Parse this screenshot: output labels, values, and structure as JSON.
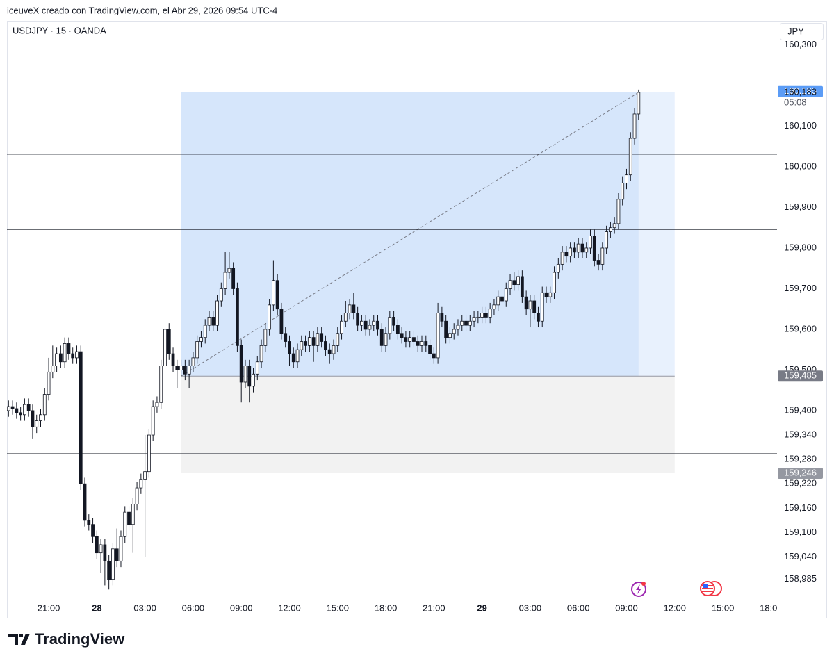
{
  "header": {
    "attribution": "iceuveX creado con TradingView.com, el Abr 29, 2026 09:54 UTC-4"
  },
  "footer": {
    "brand": "TradingView"
  },
  "chart_data": {
    "type": "candlestick",
    "title": "USDJPY · 15 · OANDA",
    "currency": "JPY",
    "x": [
      0,
      1,
      2,
      3,
      4,
      5,
      6,
      7,
      8,
      9,
      10,
      11,
      12,
      13,
      14,
      15,
      16,
      17,
      18,
      19,
      20,
      21,
      22,
      23,
      24,
      25,
      26,
      27,
      28,
      29,
      30,
      31,
      32,
      33,
      34,
      35,
      36,
      37,
      38,
      39,
      40,
      41,
      42,
      43,
      44,
      45,
      46,
      47,
      48,
      49,
      50,
      51,
      52,
      53,
      54,
      55,
      56,
      57,
      58,
      59,
      60,
      61,
      62,
      63,
      64,
      65,
      66,
      67,
      68,
      69,
      70,
      71,
      72,
      73,
      74,
      75,
      76,
      77,
      78,
      79,
      80,
      81,
      82,
      83,
      84,
      85,
      86,
      87,
      88,
      89,
      90,
      91,
      92,
      93,
      94,
      95,
      96,
      97,
      98,
      99,
      100,
      101,
      102,
      103,
      104,
      105,
      106,
      107,
      108,
      109,
      110,
      111,
      112,
      113,
      114,
      115,
      116,
      117,
      118,
      119,
      120,
      121,
      122,
      123,
      124,
      125,
      126,
      127,
      128,
      129,
      130,
      131,
      132,
      133,
      134,
      135,
      136,
      137,
      138,
      139,
      140,
      141,
      142,
      143,
      144,
      145,
      146,
      147,
      148,
      149,
      150,
      151,
      152,
      153,
      154,
      155,
      156,
      157
    ],
    "open": [
      159.4,
      159.41,
      159.405,
      159.395,
      159.39,
      159.415,
      159.4,
      159.36,
      159.375,
      159.39,
      159.44,
      159.495,
      159.51,
      159.54,
      159.52,
      159.565,
      159.54,
      159.53,
      159.545,
      159.22,
      159.13,
      159.12,
      159.09,
      159.05,
      159.07,
      159.03,
      158.985,
      159.06,
      159.03,
      159.09,
      159.15,
      159.12,
      159.17,
      159.21,
      159.23,
      159.25,
      159.34,
      159.41,
      159.42,
      159.51,
      159.6,
      159.54,
      159.51,
      159.5,
      159.51,
      159.49,
      159.51,
      159.53,
      159.57,
      159.58,
      159.61,
      159.63,
      159.61,
      159.67,
      159.7,
      159.74,
      159.75,
      159.7,
      159.56,
      159.47,
      159.51,
      159.46,
      159.49,
      159.52,
      159.56,
      159.6,
      159.66,
      159.72,
      159.65,
      159.59,
      159.57,
      159.54,
      159.52,
      159.55,
      159.57,
      159.56,
      159.58,
      159.56,
      159.59,
      159.57,
      159.55,
      159.54,
      159.56,
      159.59,
      159.62,
      159.64,
      159.66,
      159.64,
      159.61,
      159.62,
      159.6,
      159.61,
      159.62,
      159.6,
      159.56,
      159.59,
      159.63,
      159.61,
      159.59,
      159.58,
      159.57,
      159.58,
      159.57,
      159.56,
      159.57,
      159.56,
      159.54,
      159.53,
      159.64,
      159.62,
      159.58,
      159.59,
      159.6,
      159.61,
      159.62,
      159.61,
      159.62,
      159.63,
      159.63,
      159.64,
      159.63,
      159.65,
      159.66,
      159.68,
      159.67,
      159.7,
      159.72,
      159.71,
      159.73,
      159.68,
      159.65,
      159.67,
      159.64,
      159.62,
      159.69,
      159.68,
      159.69,
      159.74,
      159.76,
      159.79,
      159.78,
      159.8,
      159.79,
      159.81,
      159.79,
      159.8,
      159.83,
      159.77,
      159.76,
      159.8,
      159.84,
      159.85,
      159.86,
      159.92,
      159.96,
      159.98,
      160.07,
      160.13
    ],
    "high": [
      159.425,
      159.425,
      159.42,
      159.41,
      159.43,
      159.43,
      159.415,
      159.39,
      159.405,
      159.455,
      159.53,
      159.56,
      159.555,
      159.56,
      159.58,
      159.58,
      159.555,
      159.56,
      159.56,
      159.235,
      159.145,
      159.135,
      159.105,
      159.085,
      159.085,
      159.045,
      159.075,
      159.11,
      159.105,
      159.165,
      159.165,
      159.185,
      159.225,
      159.245,
      159.34,
      159.355,
      159.425,
      159.435,
      159.525,
      159.69,
      159.615,
      159.555,
      159.525,
      159.525,
      159.525,
      159.525,
      159.545,
      159.585,
      159.595,
      159.625,
      159.645,
      159.645,
      159.685,
      159.715,
      159.79,
      159.79,
      159.765,
      159.715,
      159.575,
      159.525,
      159.525,
      159.505,
      159.535,
      159.575,
      159.615,
      159.675,
      159.77,
      159.735,
      159.665,
      159.605,
      159.585,
      159.555,
      159.565,
      159.585,
      159.585,
      159.595,
      159.595,
      159.605,
      159.605,
      159.585,
      159.565,
      159.575,
      159.605,
      159.635,
      159.67,
      159.675,
      159.69,
      159.655,
      159.635,
      159.635,
      159.625,
      159.635,
      159.635,
      159.615,
      159.605,
      159.645,
      159.645,
      159.625,
      159.605,
      159.595,
      159.595,
      159.595,
      159.585,
      159.585,
      159.585,
      159.575,
      159.555,
      159.665,
      159.655,
      159.635,
      159.605,
      159.615,
      159.625,
      159.635,
      159.635,
      159.635,
      159.645,
      159.645,
      159.655,
      159.655,
      159.665,
      159.675,
      159.695,
      159.695,
      159.715,
      159.735,
      159.74,
      159.745,
      159.745,
      159.695,
      159.685,
      159.685,
      159.655,
      159.705,
      159.705,
      159.705,
      159.755,
      159.775,
      159.805,
      159.805,
      159.815,
      159.815,
      159.825,
      159.825,
      159.815,
      159.845,
      159.845,
      159.785,
      159.815,
      159.855,
      159.865,
      159.875,
      159.935,
      159.975,
      159.995,
      160.085,
      160.145,
      160.19
    ],
    "low": [
      159.385,
      159.39,
      159.38,
      159.375,
      159.375,
      159.385,
      159.33,
      159.345,
      159.36,
      159.375,
      159.425,
      159.48,
      159.495,
      159.505,
      159.505,
      159.525,
      159.515,
      159.515,
      159.205,
      159.115,
      159.105,
      159.075,
      159.035,
      159.0,
      158.97,
      158.96,
      158.97,
      159.015,
      159.015,
      159.075,
      159.105,
      159.05,
      159.155,
      159.195,
      159.04,
      159.235,
      159.325,
      159.395,
      159.405,
      159.495,
      159.525,
      159.495,
      159.455,
      159.485,
      159.475,
      159.455,
      159.495,
      159.515,
      159.555,
      159.565,
      159.595,
      159.595,
      159.595,
      159.655,
      159.685,
      159.725,
      159.685,
      159.545,
      159.42,
      159.455,
      159.42,
      159.445,
      159.475,
      159.505,
      159.545,
      159.585,
      159.645,
      159.635,
      159.575,
      159.555,
      159.51,
      159.505,
      159.505,
      159.535,
      159.545,
      159.545,
      159.52,
      159.545,
      159.555,
      159.535,
      159.515,
      159.525,
      159.545,
      159.575,
      159.605,
      159.625,
      159.625,
      159.595,
      159.595,
      159.585,
      159.585,
      159.595,
      159.585,
      159.545,
      159.545,
      159.575,
      159.595,
      159.575,
      159.565,
      159.555,
      159.555,
      159.555,
      159.545,
      159.545,
      159.545,
      159.525,
      159.515,
      159.515,
      159.605,
      159.565,
      159.565,
      159.575,
      159.585,
      159.595,
      159.595,
      159.595,
      159.605,
      159.615,
      159.615,
      159.615,
      159.615,
      159.635,
      159.645,
      159.655,
      159.655,
      159.685,
      159.695,
      159.695,
      159.665,
      159.635,
      159.605,
      159.625,
      159.605,
      159.605,
      159.665,
      159.665,
      159.675,
      159.725,
      159.745,
      159.765,
      159.765,
      159.775,
      159.775,
      159.775,
      159.775,
      159.785,
      159.755,
      159.745,
      159.745,
      159.785,
      159.825,
      159.835,
      159.845,
      159.905,
      159.945,
      159.965,
      160.055,
      160.115
    ],
    "close": [
      159.41,
      159.405,
      159.395,
      159.39,
      159.415,
      159.4,
      159.36,
      159.375,
      159.39,
      159.44,
      159.495,
      159.51,
      159.54,
      159.52,
      159.565,
      159.54,
      159.53,
      159.545,
      159.22,
      159.13,
      159.12,
      159.09,
      159.05,
      159.07,
      159.03,
      158.985,
      159.06,
      159.03,
      159.09,
      159.15,
      159.12,
      159.17,
      159.21,
      159.23,
      159.25,
      159.34,
      159.41,
      159.42,
      159.51,
      159.6,
      159.54,
      159.51,
      159.5,
      159.51,
      159.49,
      159.51,
      159.53,
      159.57,
      159.58,
      159.61,
      159.63,
      159.61,
      159.67,
      159.7,
      159.74,
      159.75,
      159.7,
      159.56,
      159.47,
      159.51,
      159.46,
      159.49,
      159.52,
      159.56,
      159.6,
      159.66,
      159.72,
      159.65,
      159.59,
      159.57,
      159.54,
      159.52,
      159.55,
      159.57,
      159.56,
      159.58,
      159.56,
      159.59,
      159.57,
      159.55,
      159.54,
      159.56,
      159.59,
      159.62,
      159.64,
      159.66,
      159.64,
      159.61,
      159.62,
      159.6,
      159.61,
      159.62,
      159.6,
      159.56,
      159.59,
      159.63,
      159.61,
      159.59,
      159.58,
      159.57,
      159.58,
      159.57,
      159.56,
      159.57,
      159.56,
      159.54,
      159.53,
      159.64,
      159.62,
      159.58,
      159.59,
      159.6,
      159.61,
      159.62,
      159.61,
      159.62,
      159.63,
      159.63,
      159.64,
      159.63,
      159.65,
      159.66,
      159.68,
      159.67,
      159.7,
      159.72,
      159.71,
      159.73,
      159.68,
      159.65,
      159.67,
      159.64,
      159.62,
      159.69,
      159.68,
      159.69,
      159.74,
      159.76,
      159.79,
      159.78,
      159.8,
      159.79,
      159.81,
      159.79,
      159.8,
      159.83,
      159.77,
      159.76,
      159.8,
      159.84,
      159.85,
      159.86,
      159.92,
      159.96,
      159.98,
      160.07,
      160.13,
      160.183
    ],
    "up_color": "#ffffff",
    "down_color": "#131722",
    "border_color": "#131722",
    "xlim": [
      -0.4,
      191.5
    ],
    "xticks": [
      {
        "value": 10,
        "label": "21:00"
      },
      {
        "value": 22,
        "label": "28",
        "bold": true
      },
      {
        "value": 34,
        "label": "03:00"
      },
      {
        "value": 46,
        "label": "06:00"
      },
      {
        "value": 58,
        "label": "09:00"
      },
      {
        "value": 70,
        "label": "12:00"
      },
      {
        "value": 82,
        "label": "15:00"
      },
      {
        "value": 94,
        "label": "18:00"
      },
      {
        "value": 106,
        "label": "21:00"
      },
      {
        "value": 118,
        "label": "29",
        "bold": true
      },
      {
        "value": 130,
        "label": "03:00"
      },
      {
        "value": 142,
        "label": "06:00"
      },
      {
        "value": 154,
        "label": "09:00"
      },
      {
        "value": 166,
        "label": "12:00"
      },
      {
        "value": 178,
        "label": "15:00"
      },
      {
        "value": 190,
        "label": "18:00"
      }
    ],
    "ylim": [
      158.94,
      160.359
    ],
    "yticks": [
      {
        "value": 160.3,
        "label": "160,300"
      },
      {
        "value": 160.1,
        "label": "160,100"
      },
      {
        "value": 160.0,
        "label": "160,000"
      },
      {
        "value": 159.9,
        "label": "159,900"
      },
      {
        "value": 159.8,
        "label": "159,800"
      },
      {
        "value": 159.7,
        "label": "159,700"
      },
      {
        "value": 159.6,
        "label": "159,600"
      },
      {
        "value": 159.5,
        "label": "159,500"
      },
      {
        "value": 159.4,
        "label": "159,400"
      },
      {
        "value": 159.34,
        "label": "159,340"
      },
      {
        "value": 159.28,
        "label": "159,280"
      },
      {
        "value": 159.22,
        "label": "159,220"
      },
      {
        "value": 159.16,
        "label": "159,160"
      },
      {
        "value": 159.1,
        "label": "159,100"
      },
      {
        "value": 159.04,
        "label": "159,040"
      },
      {
        "value": 158.985,
        "label": "158,985"
      }
    ],
    "price_labels": [
      {
        "value": 160.185,
        "label": "160,185",
        "color": "#5b9cf6"
      },
      {
        "value": 160.183,
        "label": "160,183"
      },
      {
        "value": 159.485,
        "label": "159,485",
        "color": "#787b86"
      },
      {
        "value": 159.246,
        "label": "159,246",
        "color": "#9598a1"
      }
    ],
    "countdown": "05:08",
    "hlines": [
      160.031,
      159.846,
      159.294
    ],
    "position": {
      "start": 43,
      "end": 166,
      "entry": 159.485,
      "target": 160.183,
      "stop": 159.246,
      "profit_color": "#d6e6fb",
      "profit_future_color": "#e8f1fd",
      "loss_color": "#f2f2f2"
    }
  }
}
